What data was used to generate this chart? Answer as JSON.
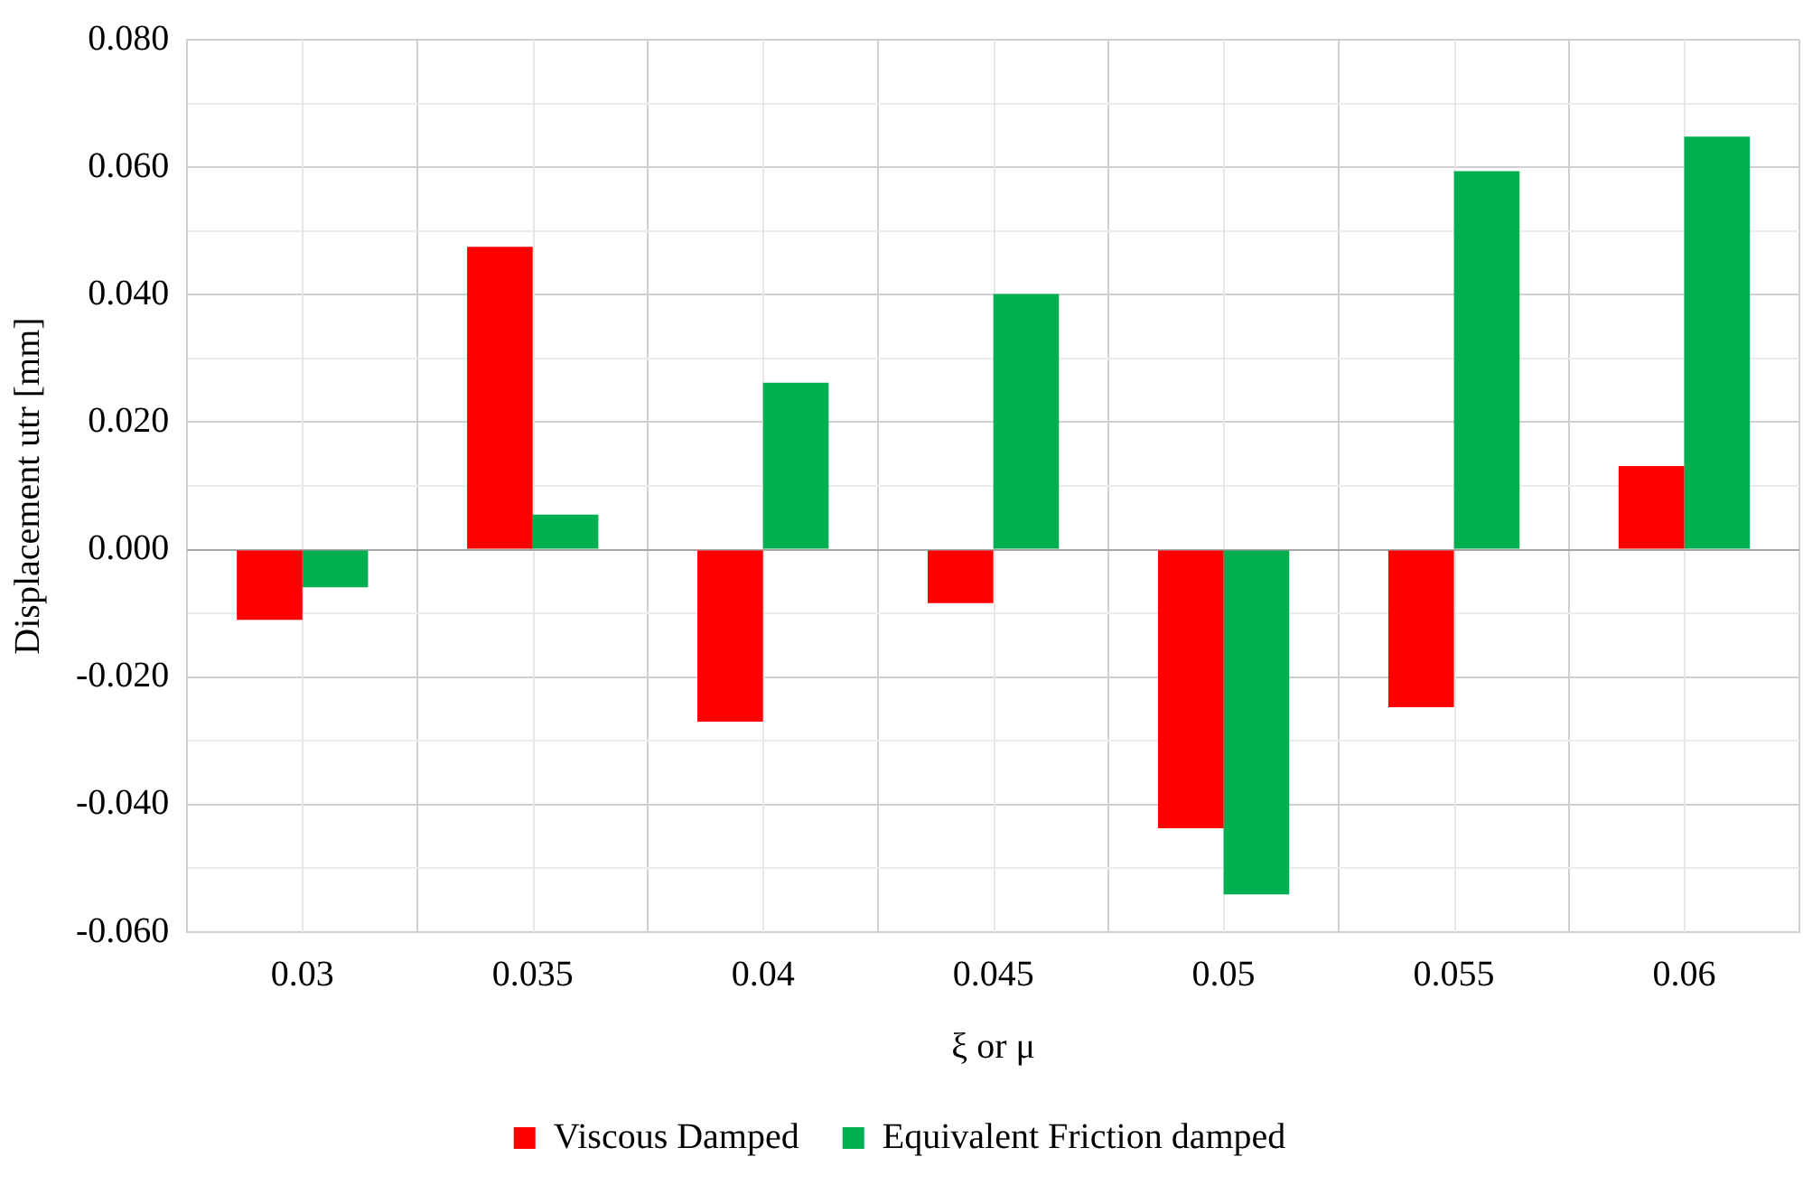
{
  "chart_data": {
    "type": "bar",
    "xlabel": "ξ or μ",
    "ylabel": "Displacement utr [mm]",
    "categories": [
      "0.03",
      "0.035",
      "0.04",
      "0.045",
      "0.05",
      "0.055",
      "0.06"
    ],
    "series": [
      {
        "name": "Viscous Damped",
        "color": "#ff0000",
        "values": [
          -0.011,
          0.0475,
          -0.027,
          -0.0084,
          -0.0437,
          -0.0247,
          0.0131
        ]
      },
      {
        "name": "Equivalent Friction damped",
        "color": "#00b050",
        "values": [
          -0.0059,
          0.0055,
          0.0262,
          0.0401,
          -0.0541,
          0.0594,
          0.0648
        ]
      }
    ],
    "ylim": [
      -0.06,
      0.08
    ],
    "yticks": [
      {
        "value": -0.06,
        "label": "-0.060"
      },
      {
        "value": -0.05,
        "label": null
      },
      {
        "value": -0.04,
        "label": "-0.040"
      },
      {
        "value": -0.03,
        "label": null
      },
      {
        "value": -0.02,
        "label": "-0.020"
      },
      {
        "value": -0.01,
        "label": null
      },
      {
        "value": 0,
        "label": "0.000"
      },
      {
        "value": 0.01,
        "label": null
      },
      {
        "value": 0.02,
        "label": "0.020"
      },
      {
        "value": 0.03,
        "label": null
      },
      {
        "value": 0.04,
        "label": "0.040"
      },
      {
        "value": 0.05,
        "label": null
      },
      {
        "value": 0.06,
        "label": "0.060"
      },
      {
        "value": 0.07,
        "label": null
      },
      {
        "value": 0.08,
        "label": "0.080"
      }
    ],
    "grid": true,
    "legend": "bottom"
  }
}
